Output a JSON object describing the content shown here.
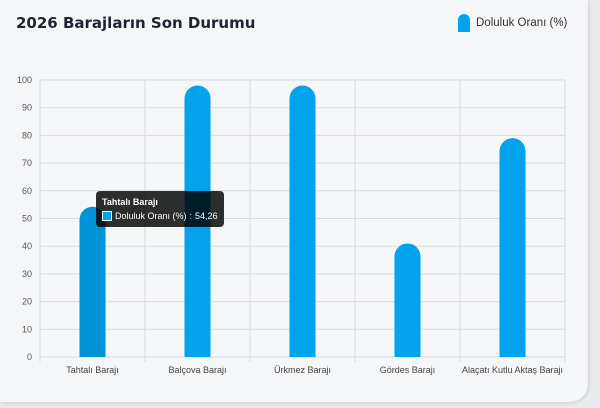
{
  "title": "2026 Barajların Son Durumu",
  "legend": {
    "label": "Doluluk Oranı (%)"
  },
  "tooltip": {
    "title": "Tahtalı Barajı",
    "label": "Doluluk Oranı (%)",
    "value": "54,26"
  },
  "colors": {
    "bar": "#00a3ec",
    "bar_active": "#0093d6",
    "grid": "#d9dbe0"
  },
  "chart_data": {
    "type": "bar",
    "categories": [
      "Tahtalı Barajı",
      "Balçova Barajı",
      "Ürkmez Barajı",
      "Gördes Barajı",
      "Alaçatı Kutlu Aktaş Barajı"
    ],
    "series": [
      {
        "name": "Doluluk Oranı (%)",
        "values": [
          54.26,
          98,
          98,
          41,
          79
        ]
      }
    ],
    "ylim": [
      0,
      100
    ],
    "yticks": [
      0,
      10,
      20,
      30,
      40,
      50,
      60,
      70,
      80,
      90,
      100
    ],
    "grid": true,
    "legend_position": "top-right",
    "active_index": 0
  }
}
